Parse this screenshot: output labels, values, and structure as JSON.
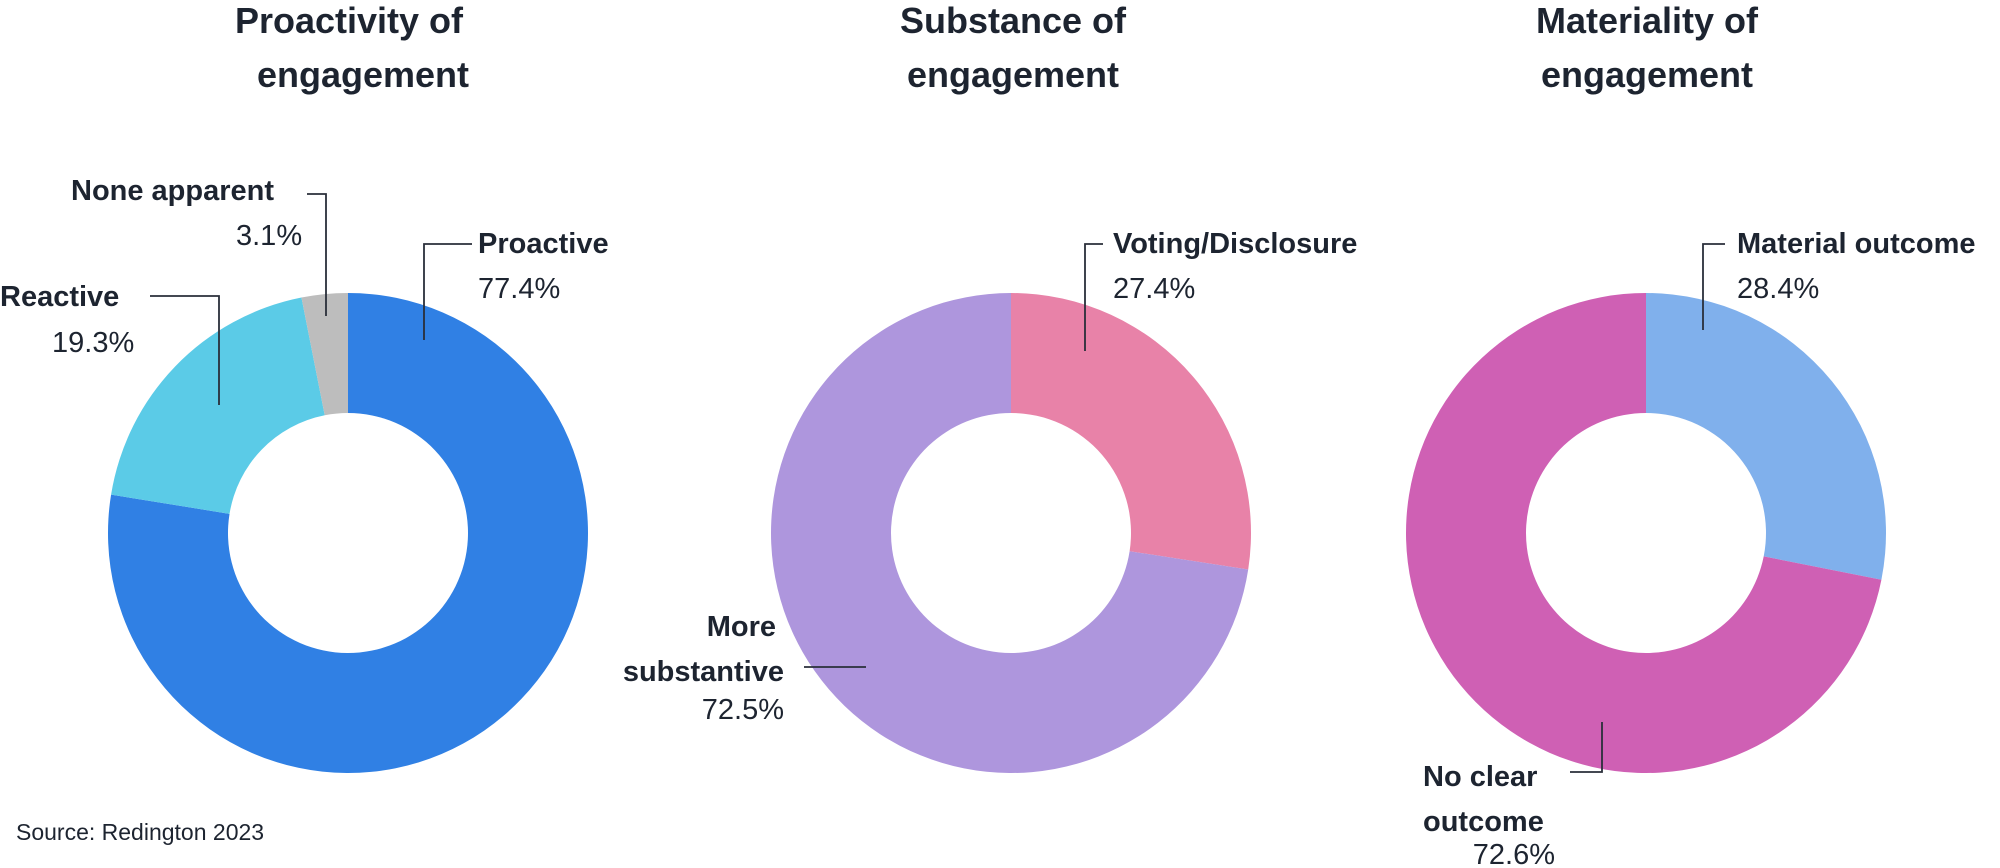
{
  "chart_data": [
    {
      "type": "donut",
      "title": [
        "Proactivity of",
        "engagement"
      ],
      "slices": [
        {
          "label": "Proactive",
          "value": 77.4,
          "value_text": "77.4%",
          "color": "#3080e4"
        },
        {
          "label": "Reactive",
          "value": 19.3,
          "value_text": "19.3%",
          "color": "#5bcbe7"
        },
        {
          "label": "None apparent",
          "value": 3.1,
          "value_text": "3.1%",
          "color": "#bdbdbd"
        }
      ]
    },
    {
      "type": "donut",
      "title": [
        "Substance of",
        "engagement"
      ],
      "slices": [
        {
          "label": "Voting/Disclosure",
          "value": 27.4,
          "value_text": "27.4%",
          "color": "#e882a8"
        },
        {
          "label": "More substantive",
          "value": 72.5,
          "value_text": "72.5%",
          "color": "#ae96dd"
        }
      ]
    },
    {
      "type": "donut",
      "title": [
        "Materiality of",
        "engagement"
      ],
      "slices": [
        {
          "label": "Material outcome",
          "value": 28.4,
          "value_text": "28.4%",
          "color": "#80b0ec"
        },
        {
          "label": "No clear outcome",
          "value": 72.6,
          "value_text": "72.6%",
          "color": "#cf60b4"
        }
      ]
    }
  ],
  "source": "Source: Redington 2023"
}
